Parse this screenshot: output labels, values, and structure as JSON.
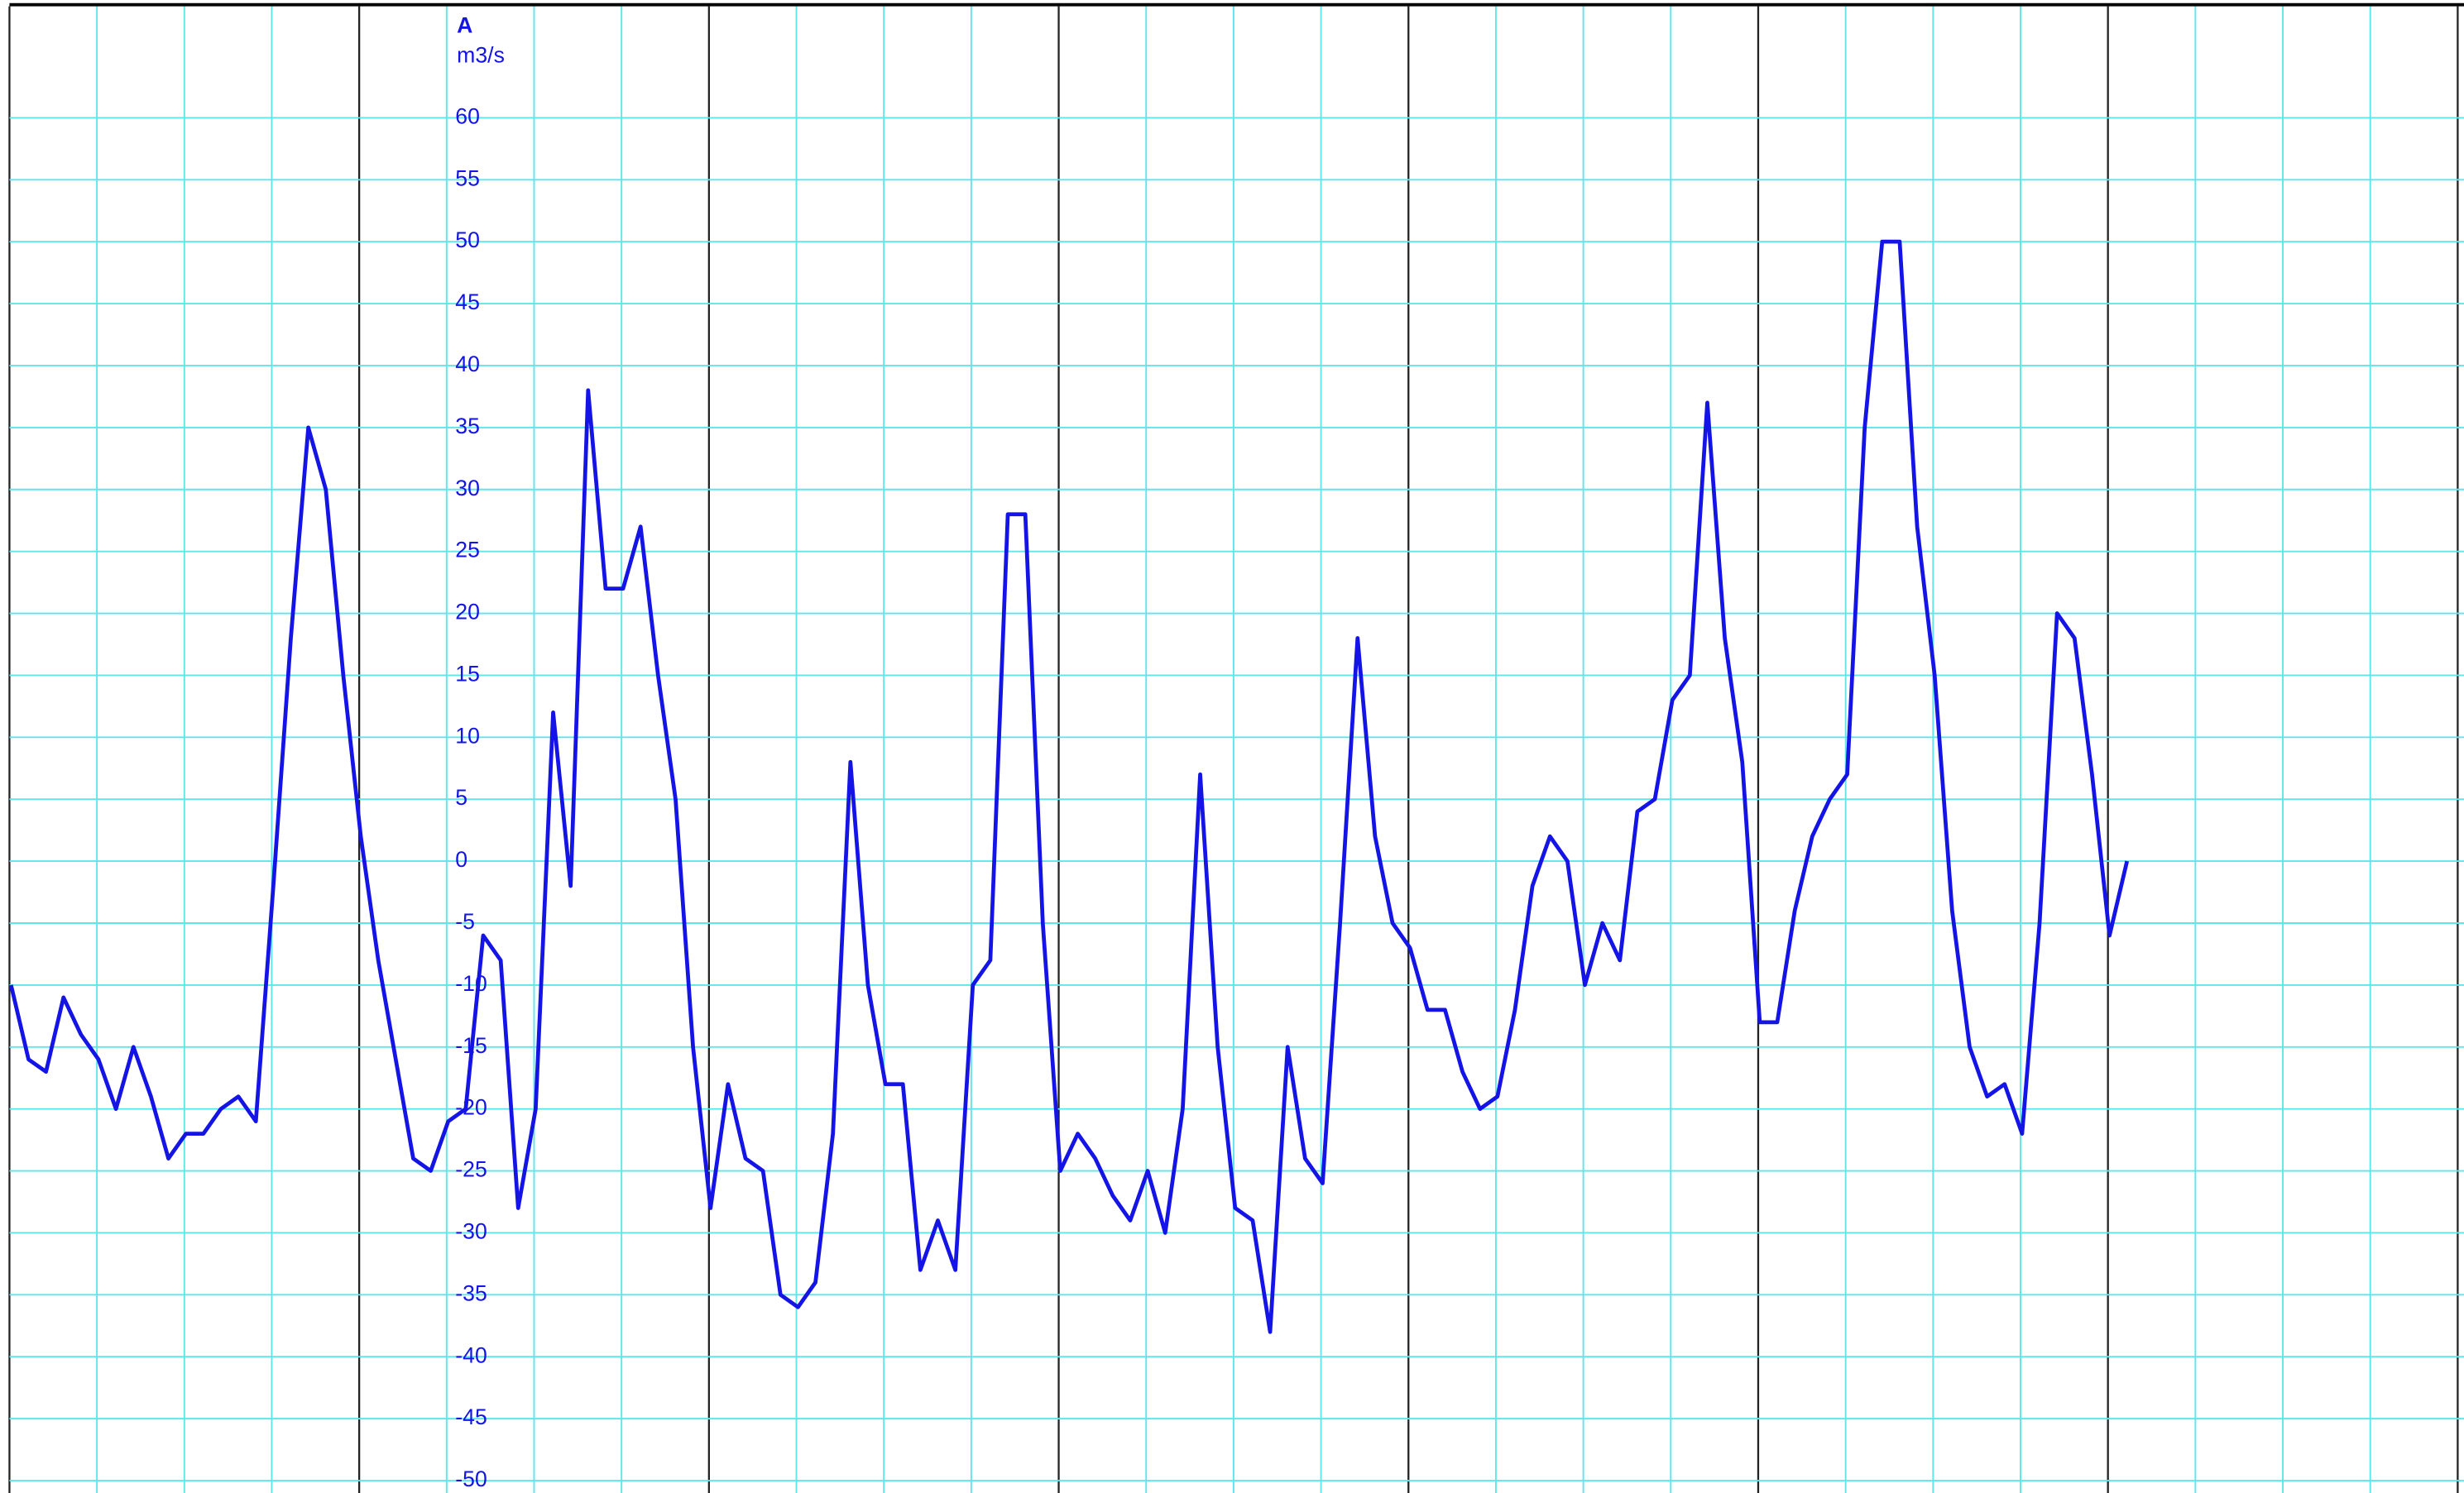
{
  "chart_data": {
    "type": "line",
    "title": "A",
    "y_label": "m3/s",
    "series": [
      {
        "name": "A",
        "color": "#1414e6",
        "values": [
          -10,
          -16,
          -17,
          -11,
          -14,
          -16,
          -20,
          -15,
          -19,
          -24,
          -22,
          -22,
          -20,
          -19,
          -21,
          -2,
          18,
          35,
          30,
          15,
          2,
          -8,
          -16,
          -24,
          -25,
          -21,
          -20,
          -6,
          -8,
          -28,
          -20,
          12,
          -2,
          38,
          22,
          22,
          27,
          15,
          5,
          -15,
          -28,
          -18,
          -24,
          -25,
          -35,
          -36,
          -34,
          -22,
          8,
          -10,
          -18,
          -18,
          -33,
          -29,
          -33,
          -10,
          -8,
          28,
          28,
          -5,
          -25,
          -22,
          -24,
          -27,
          -29,
          -25,
          -30,
          -20,
          7,
          -15,
          -28,
          -29,
          -38,
          -15,
          -24,
          -26,
          -5,
          18,
          2,
          -5,
          -7,
          -12,
          -12,
          -17,
          -20,
          -19,
          -12,
          -2,
          2,
          0,
          -10,
          -5,
          -8,
          4,
          5,
          13,
          15,
          37,
          18,
          8,
          -13,
          -13,
          -4,
          2,
          5,
          7,
          35,
          50,
          50,
          27,
          15,
          -4,
          -15,
          -19,
          -18,
          -22,
          -5,
          20,
          18,
          7,
          -6,
          0
        ]
      }
    ],
    "ylim": [
      -51,
      69
    ],
    "yticks": [
      -50,
      -45,
      -40,
      -35,
      -30,
      -25,
      -20,
      -15,
      -10,
      -5,
      0,
      5,
      10,
      15,
      20,
      25,
      30,
      35,
      40,
      45,
      50,
      55,
      60
    ],
    "grid": true
  }
}
